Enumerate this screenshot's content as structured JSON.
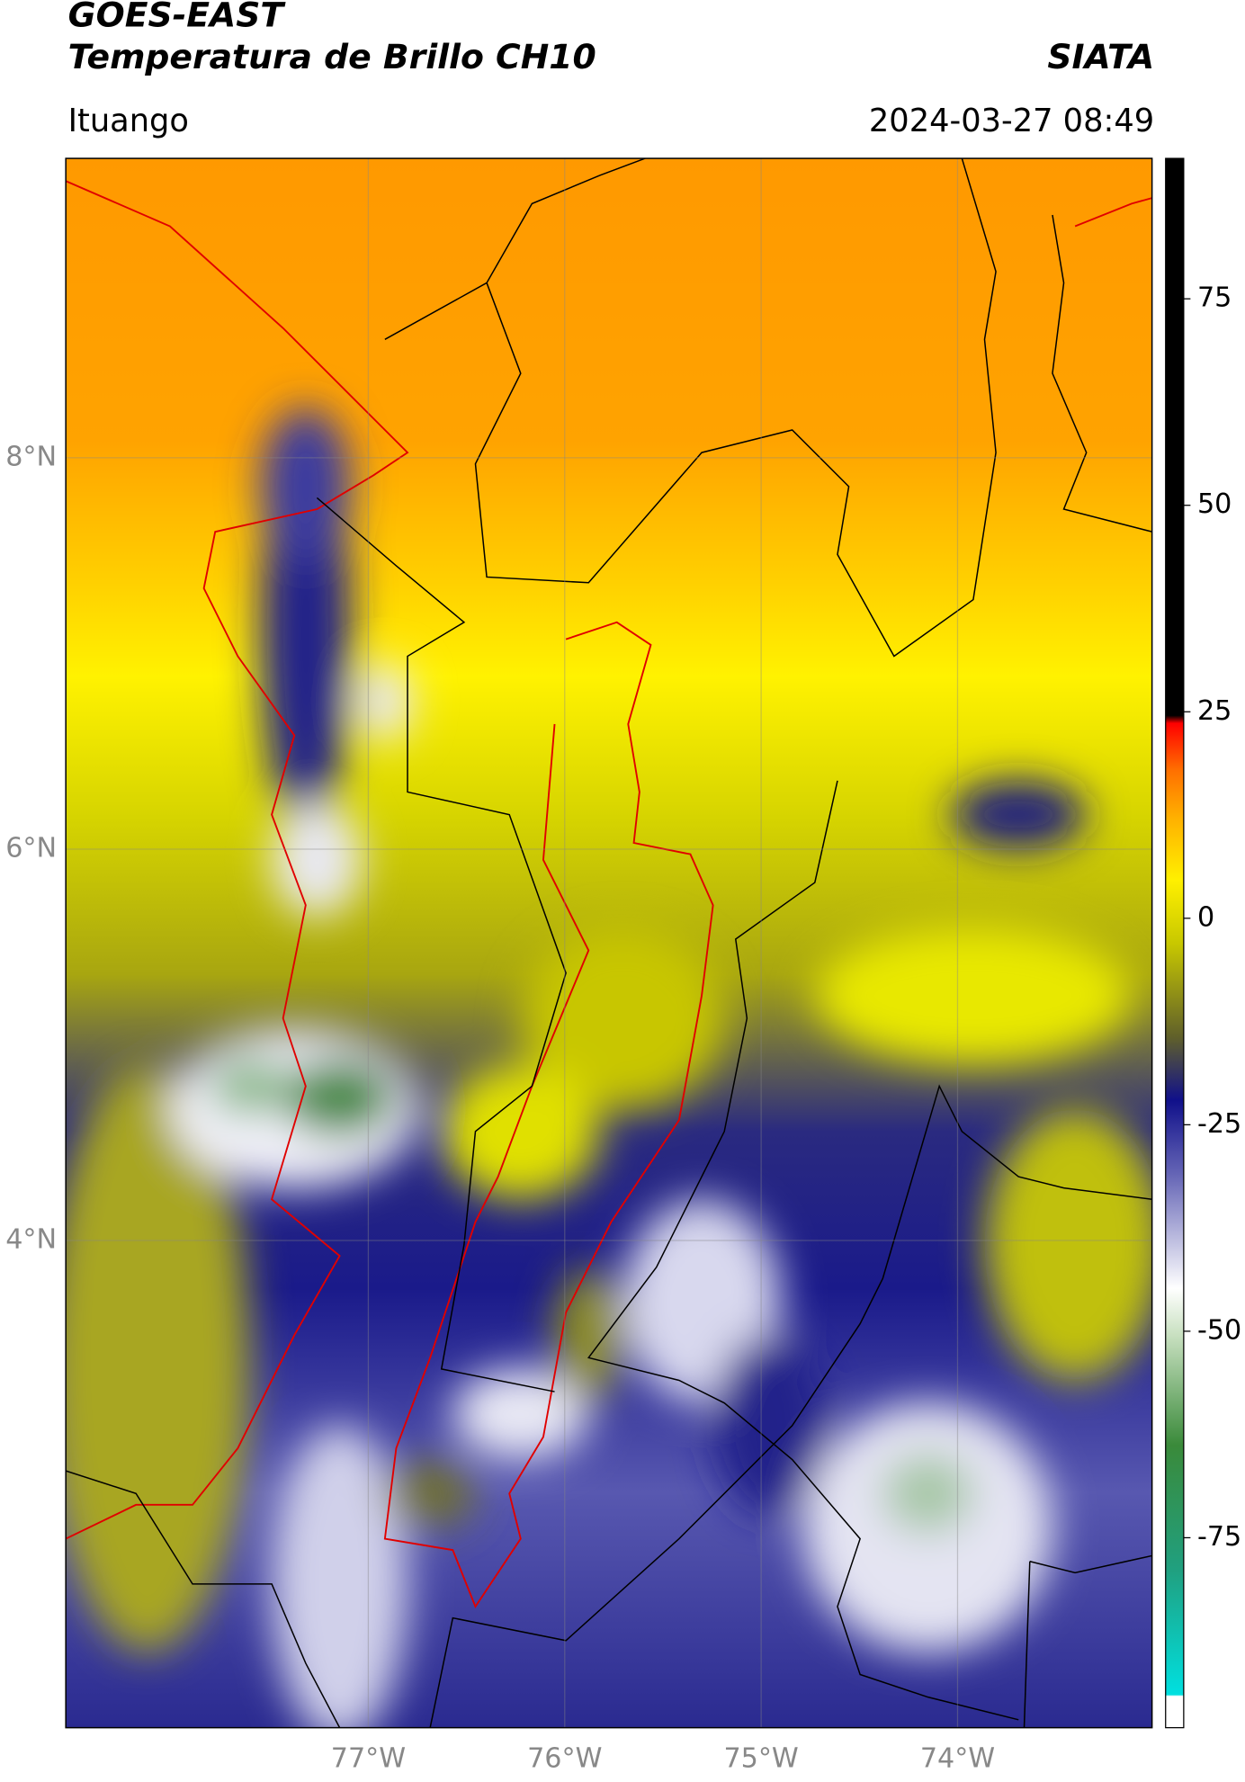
{
  "header": {
    "title": "GOES-EAST",
    "subtitle": "Temperatura de Brillo CH10",
    "organization": "SIATA",
    "location": "Ituango",
    "datetime": "2024-03-27 08:49"
  },
  "map": {
    "xlim": [
      -78.54,
      -73.01
    ],
    "ylim": [
      1.51,
      9.53
    ],
    "xticks": [
      {
        "value": -77,
        "label": "77°W"
      },
      {
        "value": -76,
        "label": "76°W"
      },
      {
        "value": -75,
        "label": "75°W"
      },
      {
        "value": -74,
        "label": "74°W"
      }
    ],
    "yticks": [
      {
        "value": 8,
        "label": "8°N"
      },
      {
        "value": 6,
        "label": "6°N"
      },
      {
        "value": 4,
        "label": "4°N"
      }
    ]
  },
  "colorbar": {
    "lim": [
      -98,
      92
    ],
    "ticks": [
      75,
      50,
      25,
      0,
      -25,
      -50,
      -75
    ]
  }
}
